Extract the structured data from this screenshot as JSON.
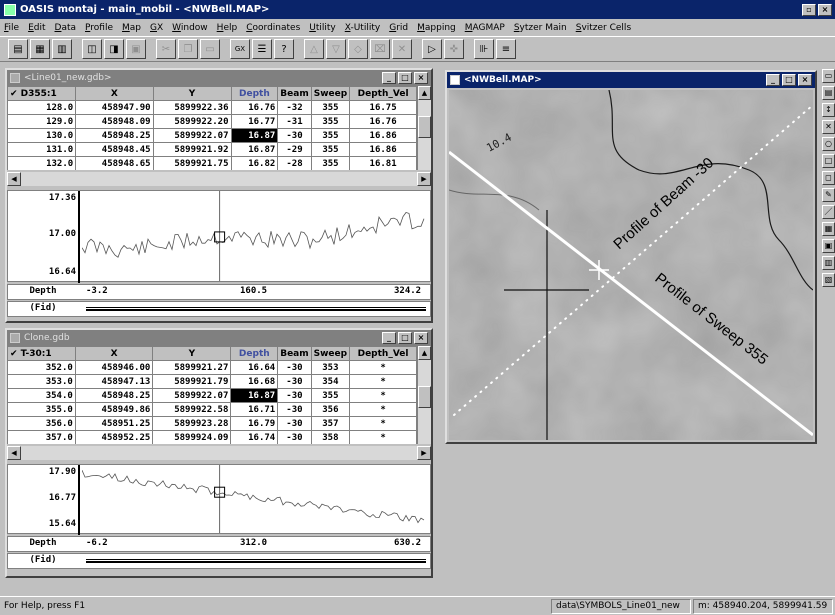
{
  "app": {
    "title": "OASIS montaj - main_mobil - <NWBell.MAP>",
    "menu": [
      "File",
      "Edit",
      "Data",
      "Profile",
      "Map",
      "GX",
      "Window",
      "Help",
      "Coordinates",
      "Utility",
      "X-Utility",
      "Grid",
      "Mapping",
      "MAGMAP",
      "Sytzer Main",
      "Svitzer Cells"
    ]
  },
  "toolbar": {
    "icons": [
      "new-database-icon",
      "open-database-icon",
      "save-database-icon",
      "new-map-icon",
      "open-map-icon",
      "save-map-icon",
      "cut-icon",
      "copy-icon",
      "paste-icon",
      "gx-icon",
      "gx-list-icon",
      "help-pointer-icon",
      "zoom-in-icon",
      "zoom-out-icon",
      "zoom-fit-icon",
      "redraw-icon",
      "delete-icon",
      "select-pointer-icon",
      "pan-icon",
      "play-icon",
      "stop-icon"
    ],
    "gx_label": "GX"
  },
  "db1": {
    "title": "<Line01_new.gdb>",
    "line_label": "✔ D355:1",
    "columns": [
      "X",
      "Y",
      "Depth",
      "Beam",
      "Sweep",
      "Depth_Vel"
    ],
    "rows": [
      [
        "128.0",
        "458947.90",
        "5899922.36",
        "16.76",
        "-32",
        "355",
        "16.75"
      ],
      [
        "129.0",
        "458948.09",
        "5899922.20",
        "16.77",
        "-31",
        "355",
        "16.76"
      ],
      [
        "130.0",
        "458948.25",
        "5899922.07",
        "16.87",
        "-30",
        "355",
        "16.86"
      ],
      [
        "131.0",
        "458948.45",
        "5899921.92",
        "16.87",
        "-29",
        "355",
        "16.86"
      ],
      [
        "132.0",
        "458948.65",
        "5899921.75",
        "16.82",
        "-28",
        "355",
        "16.81"
      ]
    ],
    "selected_row": 2,
    "profile": {
      "y_ticks": [
        "17.36",
        "17.00",
        "16.64"
      ]
    },
    "axis": {
      "channel": "Depth",
      "fid_label": "(Fid)",
      "values": [
        "-3.2",
        "160.5",
        "324.2"
      ]
    }
  },
  "db2": {
    "title": "Clone.gdb",
    "line_label": "✔ T-30:1",
    "columns": [
      "X",
      "Y",
      "Depth",
      "Beam",
      "Sweep",
      "Depth_Vel"
    ],
    "rows": [
      [
        "352.0",
        "458946.00",
        "5899921.27",
        "16.64",
        "-30",
        "353",
        "*"
      ],
      [
        "353.0",
        "458947.13",
        "5899921.79",
        "16.68",
        "-30",
        "354",
        "*"
      ],
      [
        "354.0",
        "458948.25",
        "5899922.07",
        "16.87",
        "-30",
        "355",
        "*"
      ],
      [
        "355.0",
        "458949.86",
        "5899922.58",
        "16.71",
        "-30",
        "356",
        "*"
      ],
      [
        "356.0",
        "458951.25",
        "5899923.28",
        "16.79",
        "-30",
        "357",
        "*"
      ],
      [
        "357.0",
        "458952.25",
        "5899924.09",
        "16.74",
        "-30",
        "358",
        "*"
      ]
    ],
    "selected_row": 2,
    "profile": {
      "y_ticks": [
        "17.90",
        "16.77",
        "15.64"
      ]
    },
    "axis": {
      "channel": "Depth",
      "fid_label": "(Fid)",
      "values": [
        "-6.2",
        "312.0",
        "630.2"
      ]
    }
  },
  "map": {
    "title": "<NWBell.MAP>",
    "contour_label": "10.4",
    "beam_profile_label": "Profile of Beam -30",
    "sweep_profile_label": "Profile of Sweep 355"
  },
  "status": {
    "help": "For Help, press F1",
    "symbols": "data\\SYMBOLS_Line01_new",
    "coords": "m: 458940.204, 5899941.59"
  },
  "colors": {
    "active_title": "#0a246a",
    "inactive_title": "#808080",
    "map_track": "#ffffff"
  }
}
